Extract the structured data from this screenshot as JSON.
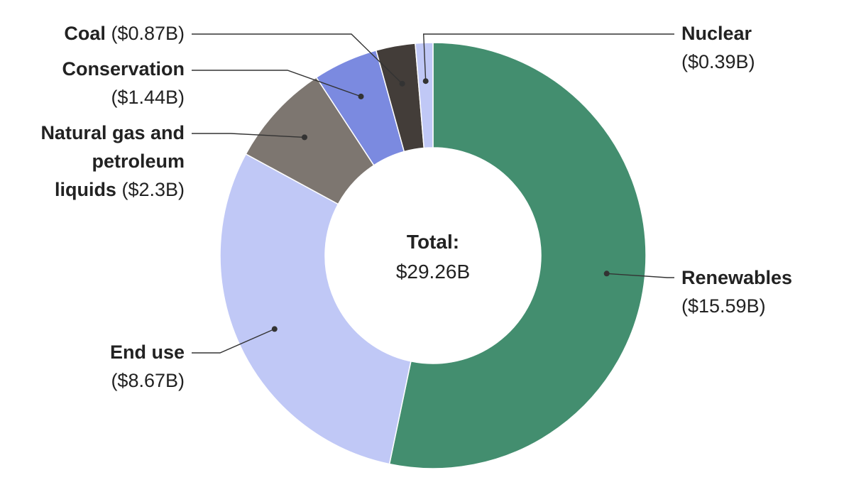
{
  "chart_data": {
    "type": "pie",
    "style": "donut",
    "center_label": {
      "title": "Total:",
      "value": "$29.26B"
    },
    "slices": [
      {
        "name": "Renewables",
        "value": 15.59,
        "value_label": "($15.59B)",
        "color": "#438e6f"
      },
      {
        "name": "End use",
        "value": 8.67,
        "value_label": "($8.67B)",
        "color": "#c0c8f6"
      },
      {
        "name": "Natural gas and petroleum liquids",
        "value": 2.3,
        "value_label": "($2.3B)",
        "color": "#7d7670"
      },
      {
        "name": "Conservation",
        "value": 1.44,
        "value_label": "($1.44B)",
        "color": "#7b8ae0"
      },
      {
        "name": "Coal",
        "value": 0.87,
        "value_label": "($0.87B)",
        "color": "#433d39"
      },
      {
        "name": "Nuclear",
        "value": 0.39,
        "value_label": "($0.39B)",
        "color": "#c0c8f6"
      }
    ]
  }
}
